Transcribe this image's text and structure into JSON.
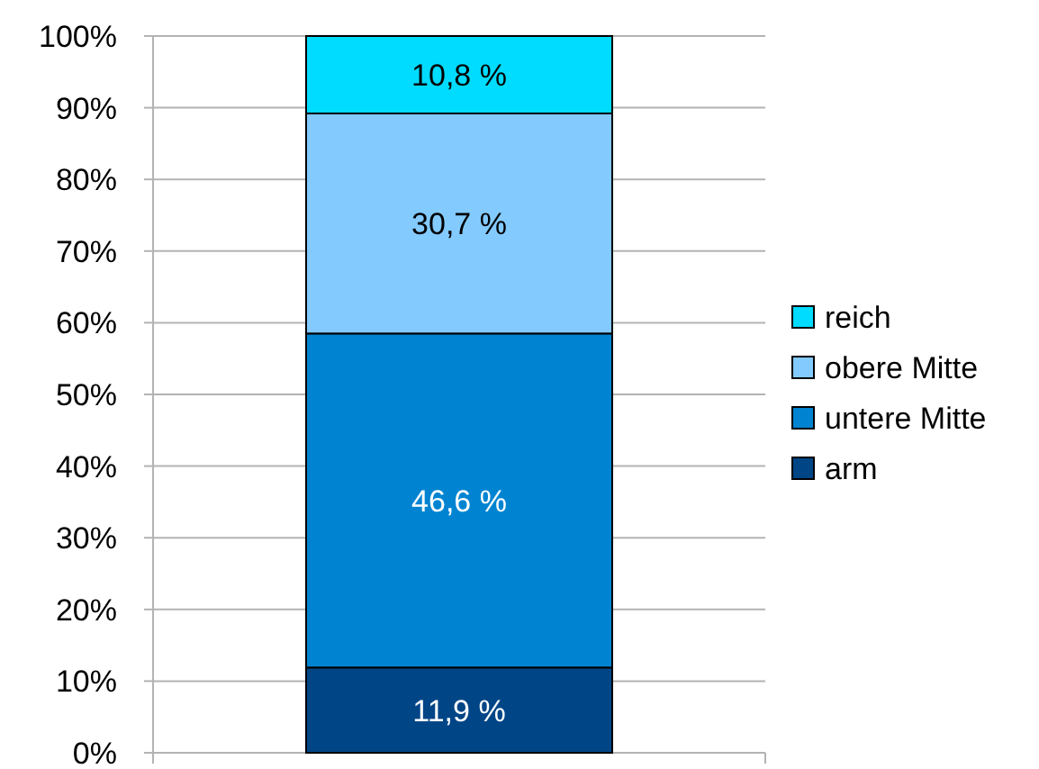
{
  "chart_data": {
    "type": "bar",
    "stacked": true,
    "categories": [
      null
    ],
    "ylim": [
      0,
      100
    ],
    "yticks": [
      {
        "value": 0,
        "label": "0%"
      },
      {
        "value": 10,
        "label": "10%"
      },
      {
        "value": 20,
        "label": "20%"
      },
      {
        "value": 30,
        "label": "30%"
      },
      {
        "value": 40,
        "label": "40%"
      },
      {
        "value": 50,
        "label": "50%"
      },
      {
        "value": 60,
        "label": "60%"
      },
      {
        "value": 70,
        "label": "70%"
      },
      {
        "value": 80,
        "label": "80%"
      },
      {
        "value": 90,
        "label": "90%"
      },
      {
        "value": 100,
        "label": "100%"
      }
    ],
    "grid": "y",
    "legend": "right",
    "series": [
      {
        "name": "arm",
        "color": "#004586",
        "values": [
          11.9
        ],
        "value_labels": [
          "11,9 %"
        ]
      },
      {
        "name": "untere Mitte",
        "color": "#0084d1",
        "values": [
          46.6
        ],
        "value_labels": [
          "46,6 %"
        ]
      },
      {
        "name": "obere Mitte",
        "color": "#83caff",
        "values": [
          30.7
        ],
        "value_labels": [
          "30,7 %"
        ]
      },
      {
        "name": "reich",
        "color": "#00dcff",
        "values": [
          10.8
        ],
        "value_labels": [
          "10,8 %"
        ]
      }
    ]
  }
}
